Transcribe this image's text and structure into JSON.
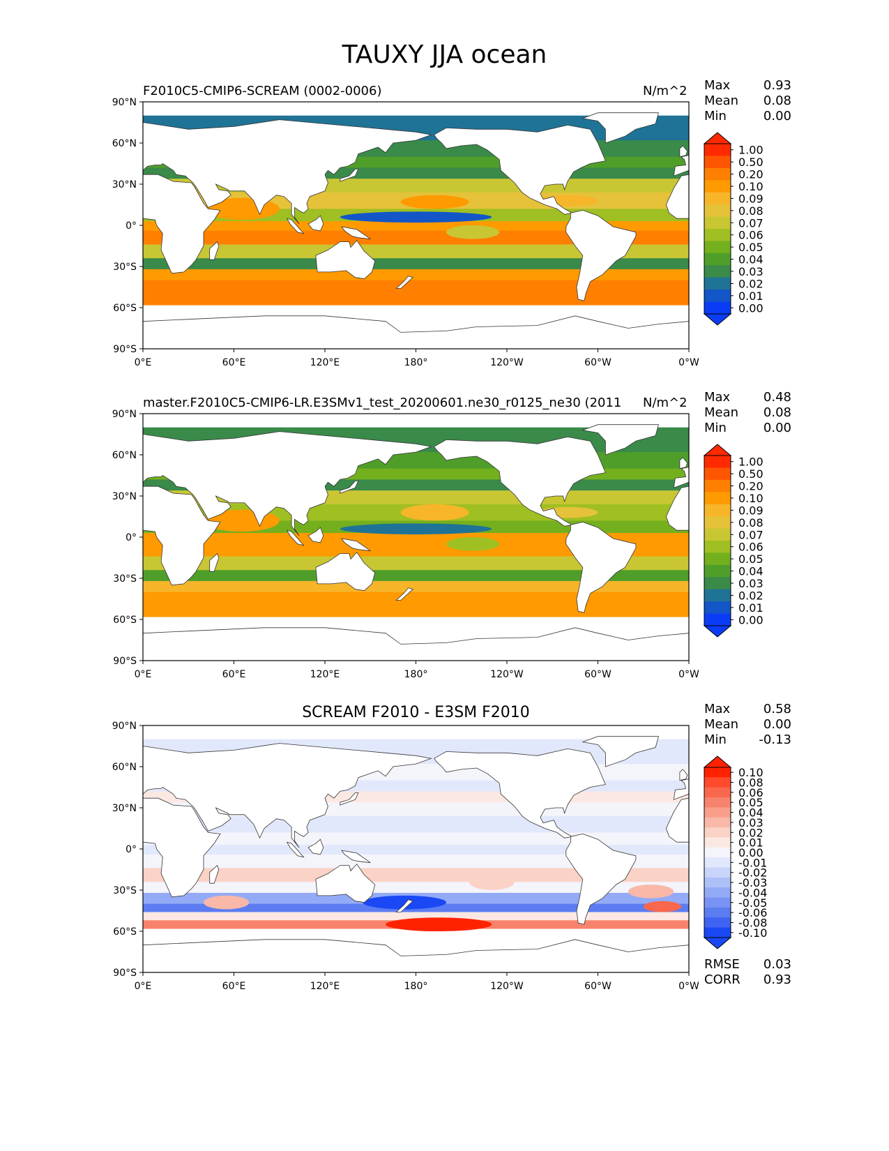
{
  "title": "TAUXY JJA ocean",
  "panels": [
    {
      "id": "test",
      "title_left": "F2010C5-CMIP6-SCREAM (0002-0006)",
      "title_center": "",
      "units": "N/m^2",
      "stats": [
        {
          "label": "Max",
          "value": "0.93"
        },
        {
          "label": "Mean",
          "value": "0.08"
        },
        {
          "label": "Min",
          "value": "0.00"
        }
      ],
      "colorbar": {
        "levels": [
          "1.00",
          "0.50",
          "0.20",
          "0.10",
          "0.09",
          "0.08",
          "0.07",
          "0.06",
          "0.05",
          "0.04",
          "0.03",
          "0.02",
          "0.01",
          "0.00"
        ],
        "colors": [
          "#ff2a00",
          "#ff5500",
          "#ff7f00",
          "#ff9a00",
          "#f7b52a",
          "#e5c23a",
          "#c9c634",
          "#9fbf22",
          "#74b01e",
          "#4f9e2a",
          "#3a8a4a",
          "#1f7396",
          "#1356c8",
          "#0a3cf5"
        ],
        "top_color": "#ff2a00",
        "bottom_color": "#0a3cf5"
      },
      "footer_stats": []
    },
    {
      "id": "reference",
      "title_left": "master.F2010C5-CMIP6-LR.E3SMv1_test_20200601.ne30_r0125_ne30 (2011",
      "title_center": "",
      "units": "N/m^2",
      "stats": [
        {
          "label": "Max",
          "value": "0.48"
        },
        {
          "label": "Mean",
          "value": "0.08"
        },
        {
          "label": "Min",
          "value": "0.00"
        }
      ],
      "colorbar": {
        "levels": [
          "1.00",
          "0.50",
          "0.20",
          "0.10",
          "0.09",
          "0.08",
          "0.07",
          "0.06",
          "0.05",
          "0.04",
          "0.03",
          "0.02",
          "0.01",
          "0.00"
        ],
        "colors": [
          "#ff2a00",
          "#ff5500",
          "#ff7f00",
          "#ff9a00",
          "#f7b52a",
          "#e5c23a",
          "#c9c634",
          "#9fbf22",
          "#74b01e",
          "#4f9e2a",
          "#3a8a4a",
          "#1f7396",
          "#1356c8",
          "#0a3cf5"
        ],
        "top_color": "#ff2a00",
        "bottom_color": "#0a3cf5"
      },
      "footer_stats": []
    },
    {
      "id": "difference",
      "title_left": "",
      "title_center": "SCREAM F2010 - E3SM F2010",
      "units": "",
      "stats": [
        {
          "label": "Max",
          "value": "0.58"
        },
        {
          "label": "Mean",
          "value": "0.00"
        },
        {
          "label": "Min",
          "value": "-0.13"
        }
      ],
      "colorbar": {
        "levels": [
          "0.10",
          "0.08",
          "0.06",
          "0.05",
          "0.04",
          "0.03",
          "0.02",
          "0.01",
          "0.00",
          "-0.01",
          "-0.02",
          "-0.03",
          "-0.04",
          "-0.05",
          "-0.06",
          "-0.08",
          "-0.10"
        ],
        "colors": [
          "#ff2200",
          "#ff4a2c",
          "#f9674c",
          "#f8836c",
          "#f99e8a",
          "#f9b8a8",
          "#fad2c6",
          "#fbe8e2",
          "#f4f4fb",
          "#e2e8fb",
          "#c8d4fa",
          "#aec0f8",
          "#93aaf6",
          "#7993f4",
          "#5c7cf2",
          "#3e63f2",
          "#1a48f5"
        ],
        "top_color": "#ff2200",
        "bottom_color": "#1a48f5"
      },
      "footer_stats": [
        {
          "label": "RMSE",
          "value": "0.03"
        },
        {
          "label": "CORR",
          "value": "0.93"
        }
      ]
    }
  ],
  "axes": {
    "lat_ticks": [
      "90°N",
      "60°N",
      "30°N",
      "0°",
      "30°S",
      "60°S",
      "90°S"
    ],
    "lon_ticks": [
      "0°E",
      "60°E",
      "120°E",
      "180°",
      "120°W",
      "60°W",
      "0°W"
    ]
  }
}
